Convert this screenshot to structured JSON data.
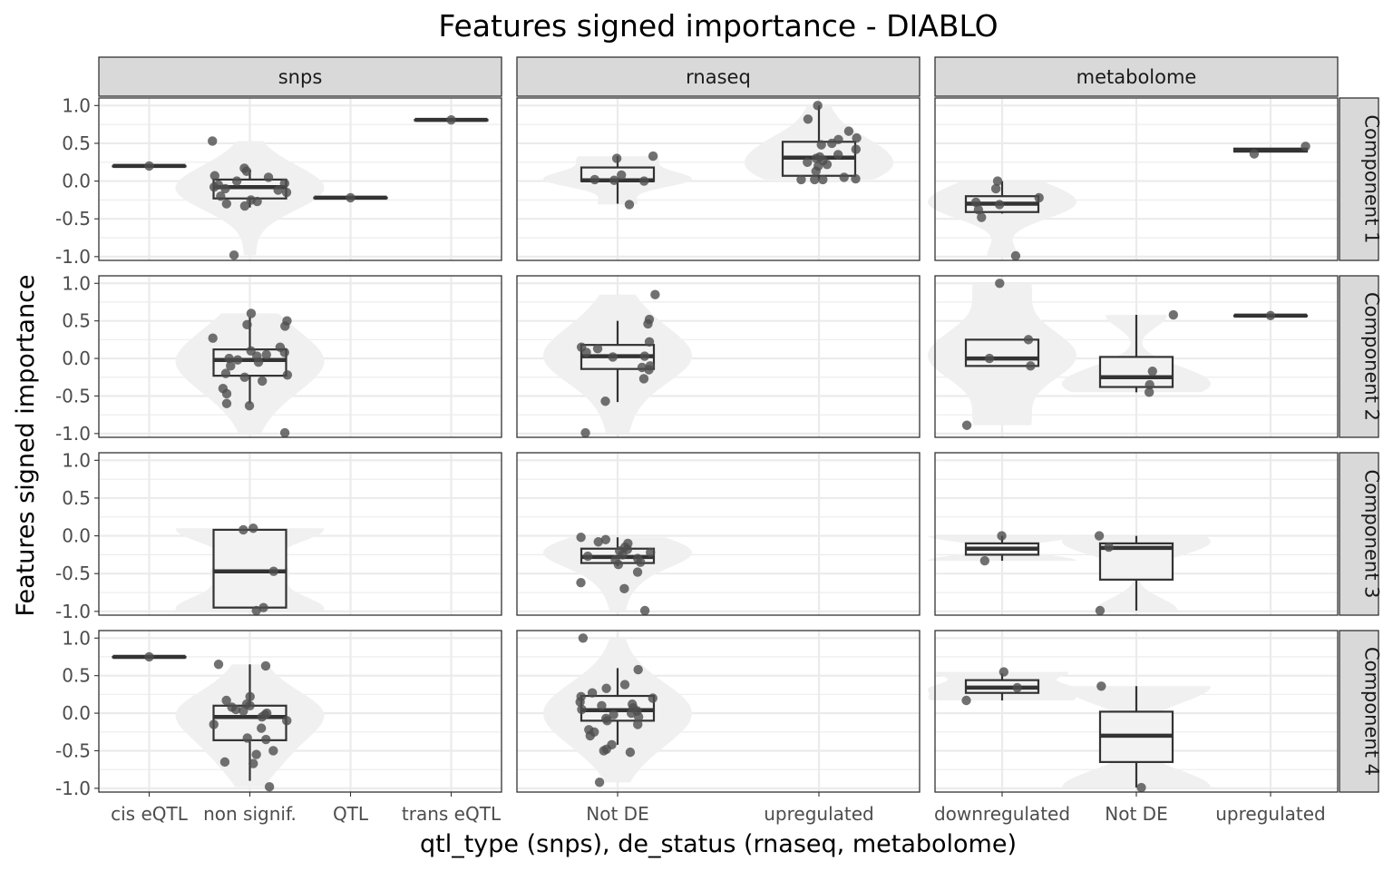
{
  "chart_data": {
    "type": "boxplot",
    "title": "Features signed importance - DIABLO",
    "xlabel": "qtl_type (snps), de_status (rnaseq, metabolome)",
    "ylabel": "Features signed importance",
    "ylim": [
      -1.05,
      1.1
    ],
    "yticks": [
      1.0,
      0.5,
      0.0,
      -0.5,
      -1.0
    ],
    "ytick_labels": [
      "1.0",
      "0.5",
      "0.0",
      "-0.5",
      "-1.0"
    ],
    "grid": true,
    "overlays": [
      "violin",
      "boxplot",
      "jittered points"
    ],
    "colors": {
      "strip": "#d9d9d9",
      "points": "#4d4d4d",
      "violin": "#f0f0f0",
      "box_fill": "#f2f2f2",
      "box_line": "#333333"
    },
    "facet_cols": [
      {
        "name": "snps",
        "categories": [
          "cis eQTL",
          "non signif.",
          "QTL",
          "trans eQTL"
        ]
      },
      {
        "name": "rnaseq",
        "categories": [
          "Not DE",
          "upregulated"
        ]
      },
      {
        "name": "metabolome",
        "categories": [
          "downregulated",
          "Not DE",
          "upregulated"
        ]
      }
    ],
    "facet_rows": [
      "Component 1",
      "Component 2",
      "Component 3",
      "Component 4"
    ],
    "panels": [
      {
        "row": "Component 1",
        "col": "snps",
        "groups": [
          {
            "category": "cis eQTL",
            "q1": 0.2,
            "median": 0.2,
            "q3": 0.2,
            "lower": 0.2,
            "upper": 0.2,
            "points": [
              0.2
            ]
          },
          {
            "category": "non signif.",
            "q1": -0.23,
            "median": -0.08,
            "q3": 0.02,
            "lower": -0.35,
            "upper": 0.15,
            "violin": true,
            "points": [
              0.53,
              0.17,
              0.13,
              0.07,
              0.05,
              0.0,
              -0.03,
              -0.05,
              -0.08,
              -0.1,
              -0.12,
              -0.15,
              -0.2,
              -0.25,
              -0.27,
              -0.3,
              -0.33,
              -0.98
            ]
          },
          {
            "category": "QTL",
            "q1": -0.22,
            "median": -0.22,
            "q3": -0.22,
            "lower": -0.22,
            "upper": -0.22,
            "points": [
              -0.22
            ]
          },
          {
            "category": "trans eQTL",
            "q1": 0.81,
            "median": 0.81,
            "q3": 0.81,
            "lower": 0.81,
            "upper": 0.81,
            "points": [
              0.81
            ]
          }
        ]
      },
      {
        "row": "Component 1",
        "col": "rnaseq",
        "groups": [
          {
            "category": "Not DE",
            "q1": 0.0,
            "median": 0.01,
            "q3": 0.18,
            "lower": -0.3,
            "upper": 0.33,
            "violin": true,
            "points": [
              0.33,
              0.3,
              0.08,
              0.02,
              0.01,
              0.0,
              -0.31
            ]
          },
          {
            "category": "upregulated",
            "q1": 0.07,
            "median": 0.31,
            "q3": 0.52,
            "lower": 0.02,
            "upper": 1.0,
            "violin": true,
            "points": [
              1.0,
              0.82,
              0.66,
              0.57,
              0.55,
              0.5,
              0.48,
              0.42,
              0.35,
              0.32,
              0.3,
              0.27,
              0.25,
              0.22,
              0.2,
              0.13,
              0.05,
              0.03,
              0.02,
              0.02,
              0.02
            ]
          }
        ]
      },
      {
        "row": "Component 1",
        "col": "metabolome",
        "groups": [
          {
            "category": "downregulated",
            "q1": -0.41,
            "median": -0.3,
            "q3": -0.2,
            "lower": -0.43,
            "upper": 0.0,
            "violin": true,
            "points": [
              0.0,
              -0.1,
              -0.22,
              -0.28,
              -0.31,
              -0.38,
              -0.48,
              -0.99
            ]
          },
          {
            "category": "upregulated",
            "q1": 0.39,
            "median": 0.41,
            "q3": 0.43,
            "lower": 0.39,
            "upper": 0.43,
            "points": [
              0.46,
              0.36
            ]
          }
        ]
      },
      {
        "row": "Component 2",
        "col": "snps",
        "groups": [
          {
            "category": "non signif.",
            "q1": -0.23,
            "median": -0.02,
            "q3": 0.12,
            "lower": -0.6,
            "upper": 0.55,
            "violin": true,
            "points": [
              0.6,
              0.5,
              0.45,
              0.43,
              0.27,
              0.15,
              0.1,
              0.08,
              0.05,
              0.03,
              0.0,
              -0.02,
              -0.05,
              -0.1,
              -0.2,
              -0.22,
              -0.25,
              -0.3,
              -0.4,
              -0.47,
              -0.6,
              -0.63,
              -0.99
            ]
          }
        ]
      },
      {
        "row": "Component 2",
        "col": "rnaseq",
        "groups": [
          {
            "category": "Not DE",
            "q1": -0.14,
            "median": 0.03,
            "q3": 0.18,
            "lower": -0.58,
            "upper": 0.5,
            "violin": true,
            "points": [
              0.85,
              0.52,
              0.46,
              0.22,
              0.15,
              0.13,
              0.08,
              0.03,
              0.02,
              -0.1,
              -0.12,
              -0.15,
              -0.27,
              -0.57,
              -0.99
            ]
          }
        ]
      },
      {
        "row": "Component 2",
        "col": "metabolome",
        "groups": [
          {
            "category": "downregulated",
            "q1": -0.1,
            "median": 0.0,
            "q3": 0.25,
            "lower": -0.1,
            "upper": 0.25,
            "violin": true,
            "points": [
              1.0,
              0.25,
              0.0,
              -0.1,
              -0.89
            ]
          },
          {
            "category": "Not DE",
            "q1": -0.38,
            "median": -0.25,
            "q3": 0.02,
            "lower": -0.45,
            "upper": 0.58,
            "violin": true,
            "points": [
              0.58,
              -0.17,
              -0.35,
              -0.45
            ]
          },
          {
            "category": "upregulated",
            "q1": 0.57,
            "median": 0.57,
            "q3": 0.57,
            "lower": 0.57,
            "upper": 0.57,
            "points": [
              0.57
            ]
          }
        ]
      },
      {
        "row": "Component 3",
        "col": "snps",
        "groups": [
          {
            "category": "non signif.",
            "q1": -0.95,
            "median": -0.47,
            "q3": 0.08,
            "lower": -0.95,
            "upper": 0.08,
            "violin": true,
            "points": [
              0.1,
              0.08,
              -0.47,
              -0.95,
              -0.99
            ]
          }
        ]
      },
      {
        "row": "Component 3",
        "col": "rnaseq",
        "groups": [
          {
            "category": "Not DE",
            "q1": -0.36,
            "median": -0.28,
            "q3": -0.17,
            "lower": -0.4,
            "upper": -0.02,
            "violin": true,
            "points": [
              -0.02,
              -0.05,
              -0.08,
              -0.1,
              -0.15,
              -0.18,
              -0.2,
              -0.22,
              -0.25,
              -0.27,
              -0.3,
              -0.32,
              -0.35,
              -0.38,
              -0.48,
              -0.62,
              -0.7,
              -0.99
            ]
          }
        ]
      },
      {
        "row": "Component 3",
        "col": "metabolome",
        "groups": [
          {
            "category": "downregulated",
            "q1": -0.25,
            "median": -0.17,
            "q3": -0.1,
            "lower": -0.33,
            "upper": 0.0,
            "violin": true,
            "points": [
              0.0,
              -0.33
            ]
          },
          {
            "category": "Not DE",
            "q1": -0.58,
            "median": -0.16,
            "q3": -0.1,
            "lower": -0.99,
            "upper": 0.0,
            "violin": true,
            "points": [
              0.0,
              -0.15,
              -0.99
            ]
          }
        ]
      },
      {
        "row": "Component 4",
        "col": "snps",
        "groups": [
          {
            "category": "cis eQTL",
            "q1": 0.75,
            "median": 0.75,
            "q3": 0.75,
            "lower": 0.75,
            "upper": 0.75,
            "points": [
              0.75
            ]
          },
          {
            "category": "non signif.",
            "q1": -0.36,
            "median": -0.05,
            "q3": 0.1,
            "lower": -0.9,
            "upper": 0.65,
            "violin": true,
            "points": [
              0.65,
              0.63,
              0.22,
              0.17,
              0.12,
              0.1,
              0.08,
              0.05,
              0.03,
              0.0,
              -0.02,
              -0.05,
              -0.1,
              -0.15,
              -0.2,
              -0.33,
              -0.35,
              -0.5,
              -0.55,
              -0.65,
              -0.67,
              -0.98
            ]
          }
        ]
      },
      {
        "row": "Component 4",
        "col": "rnaseq",
        "groups": [
          {
            "category": "Not DE",
            "q1": -0.1,
            "median": 0.04,
            "q3": 0.23,
            "lower": -0.42,
            "upper": 0.6,
            "violin": true,
            "points": [
              1.0,
              0.58,
              0.38,
              0.33,
              0.27,
              0.22,
              0.2,
              0.15,
              0.12,
              0.1,
              0.07,
              0.05,
              0.03,
              0.0,
              -0.02,
              -0.05,
              -0.07,
              -0.1,
              -0.15,
              -0.22,
              -0.25,
              -0.3,
              -0.42,
              -0.48,
              -0.5,
              -0.52,
              -0.92
            ]
          }
        ]
      },
      {
        "row": "Component 4",
        "col": "metabolome",
        "groups": [
          {
            "category": "downregulated",
            "q1": 0.27,
            "median": 0.34,
            "q3": 0.44,
            "lower": 0.17,
            "upper": 0.53,
            "violin": true,
            "points": [
              0.55,
              0.34,
              0.17
            ]
          },
          {
            "category": "Not DE",
            "q1": -0.65,
            "median": -0.3,
            "q3": 0.02,
            "lower": -0.99,
            "upper": 0.36,
            "violin": true,
            "points": [
              0.36,
              -0.99
            ]
          }
        ]
      }
    ]
  }
}
